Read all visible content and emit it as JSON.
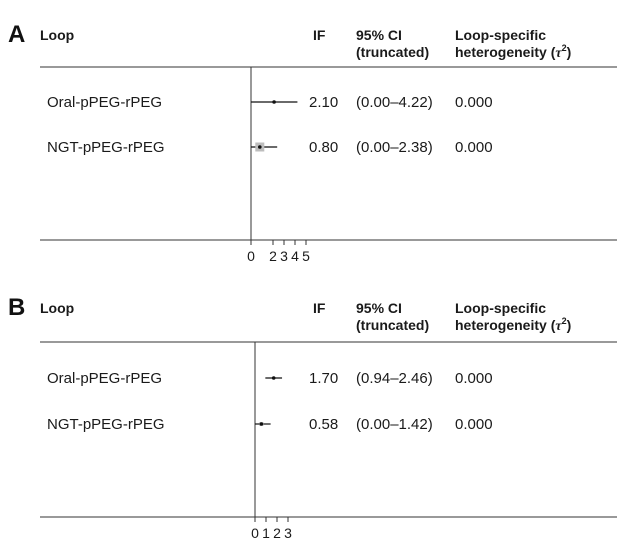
{
  "chart_data": [
    {
      "type": "forest",
      "panel": "A",
      "headers": {
        "loop": "Loop",
        "if": "IF",
        "ci_line1": "95% CI",
        "ci_line2": "(truncated)",
        "het_line1": "Loop-specific",
        "het_line2": "heterogeneity (",
        "het_symbol": "τ",
        "het_sup": "2",
        "het_close": ")"
      },
      "rows": [
        {
          "loop": "Oral-pPEG-rPEG",
          "if": 2.1,
          "if_text": "2.10",
          "ci_low": 0.0,
          "ci_high": 4.22,
          "ci_text": "(0.00–4.22)",
          "heterogeneity": "0.000"
        },
        {
          "loop": "NGT-pPEG-rPEG",
          "if": 0.8,
          "if_text": "0.80",
          "ci_low": 0.0,
          "ci_high": 2.38,
          "ci_text": "(0.00–2.38)",
          "heterogeneity": "0.000"
        }
      ],
      "xticks": [
        0,
        2,
        3,
        4,
        5
      ],
      "xlim": [
        0,
        5
      ]
    },
    {
      "type": "forest",
      "panel": "B",
      "headers": {
        "loop": "Loop",
        "if": "IF",
        "ci_line1": "95% CI",
        "ci_line2": "(truncated)",
        "het_line1": "Loop-specific",
        "het_line2": "heterogeneity (",
        "het_symbol": "τ",
        "het_sup": "2",
        "het_close": ")"
      },
      "rows": [
        {
          "loop": "Oral-pPEG-rPEG",
          "if": 1.7,
          "if_text": "1.70",
          "ci_low": 0.94,
          "ci_high": 2.46,
          "ci_text": "(0.94–2.46)",
          "heterogeneity": "0.000"
        },
        {
          "loop": "NGT-pPEG-rPEG",
          "if": 0.58,
          "if_text": "0.58",
          "ci_low": 0.0,
          "ci_high": 1.42,
          "ci_text": "(0.00–1.42)",
          "heterogeneity": "0.000"
        }
      ],
      "xticks": [
        0,
        1,
        2,
        3
      ],
      "xlim": [
        0,
        3
      ]
    }
  ]
}
